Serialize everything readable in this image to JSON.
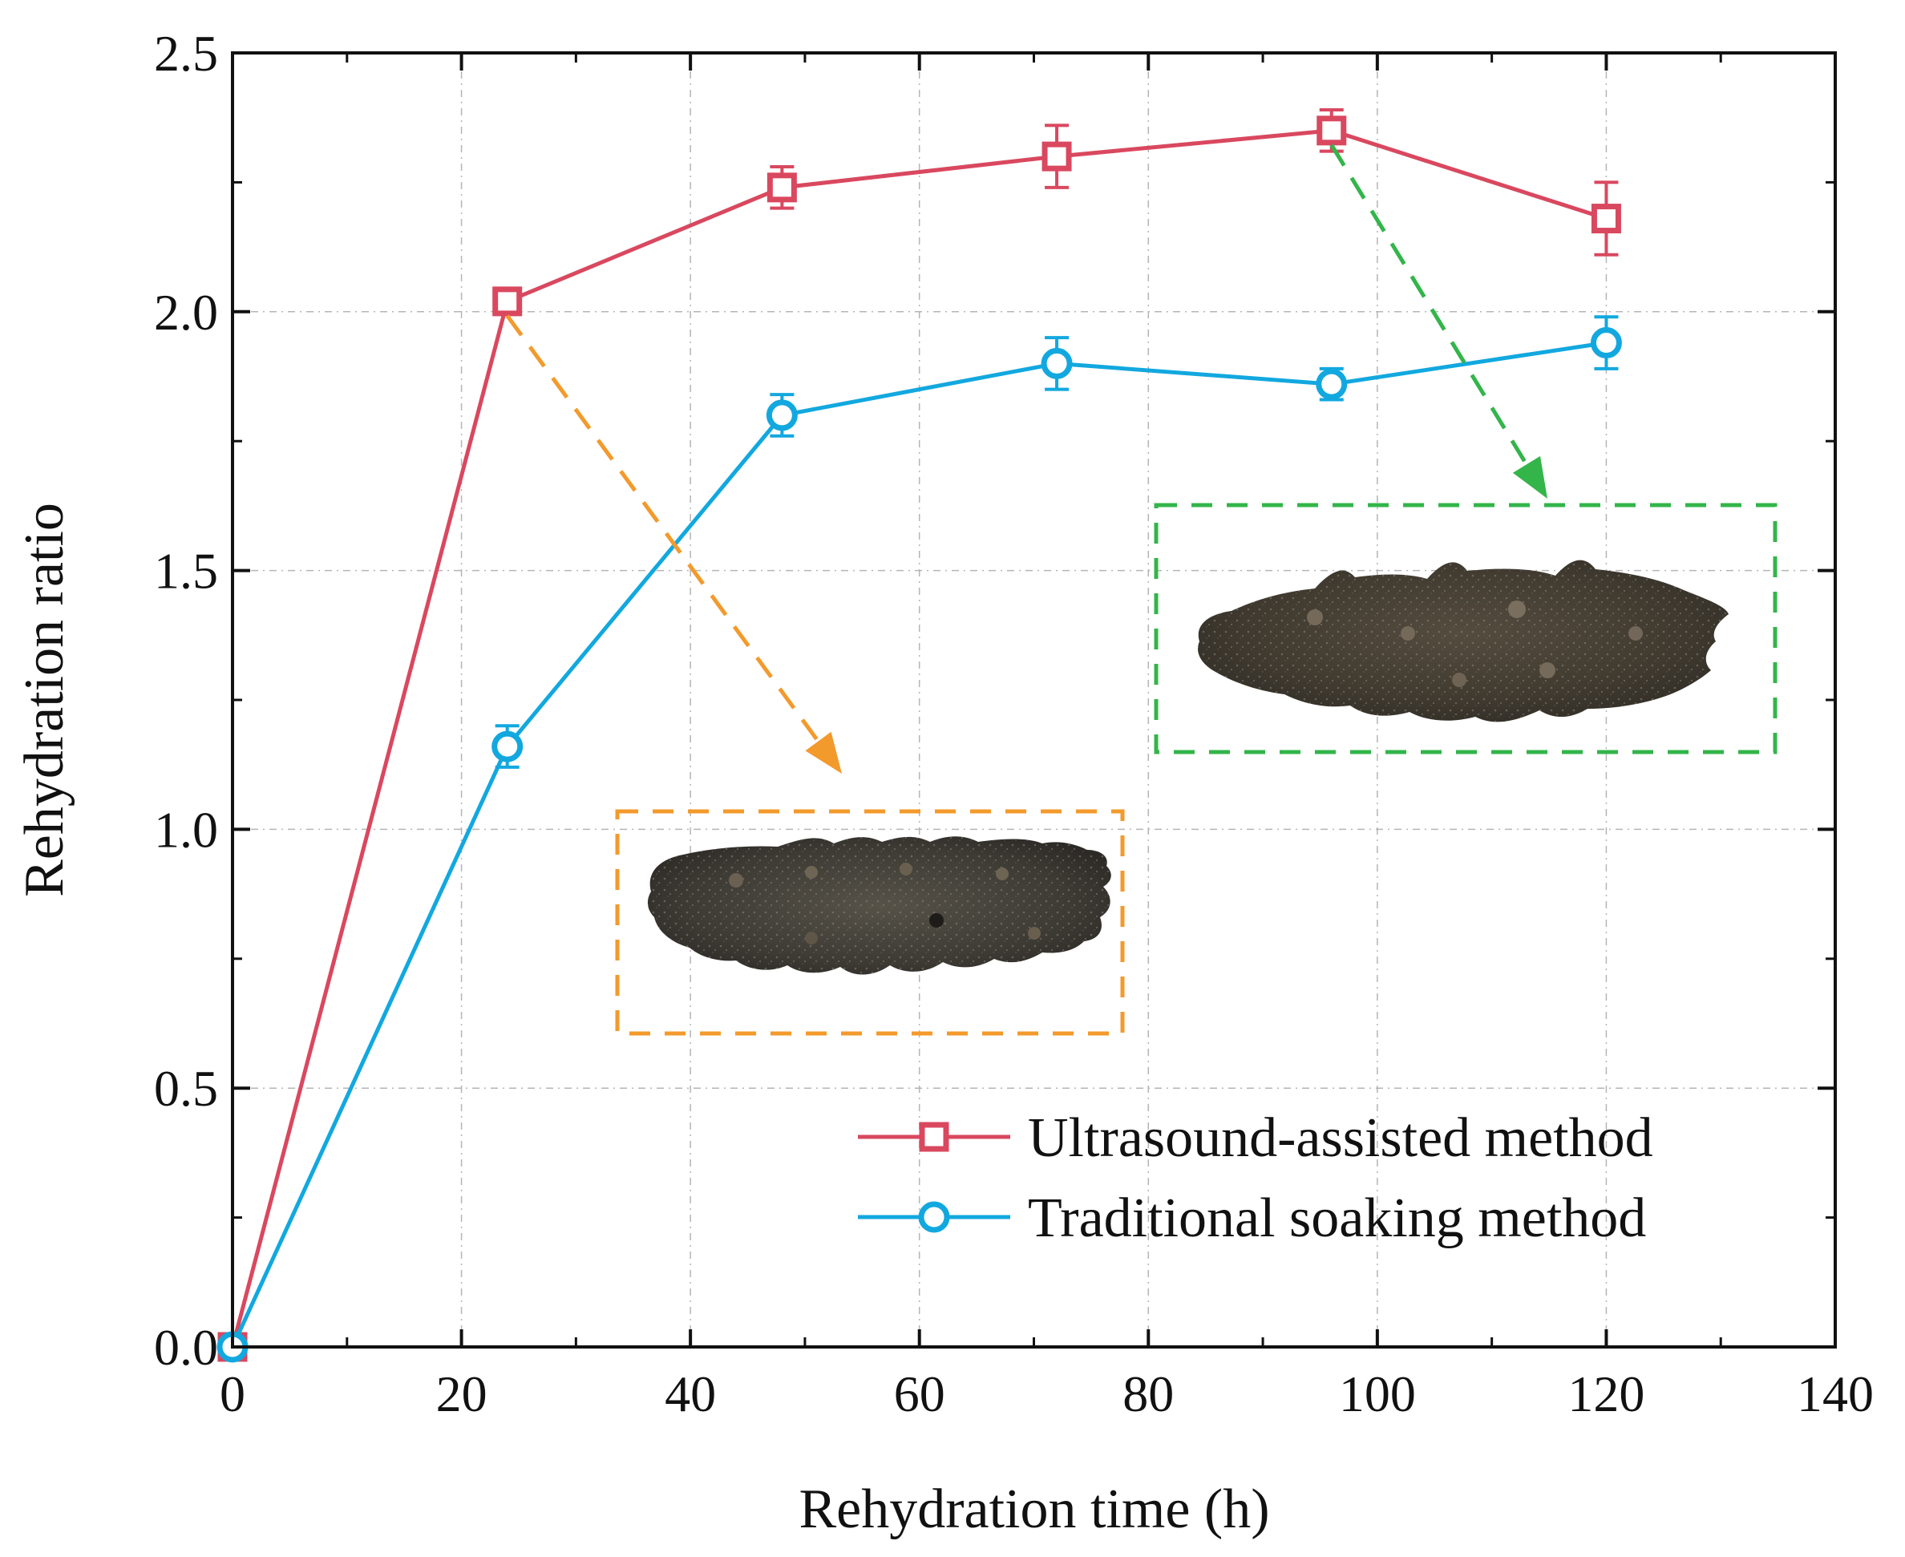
{
  "chart_data": {
    "type": "line",
    "xlabel": "Rehydration time (h)",
    "ylabel": "Rehydration ratio",
    "xlim": [
      0,
      140
    ],
    "ylim": [
      0,
      2.5
    ],
    "xticks": [
      0,
      20,
      40,
      60,
      80,
      100,
      120,
      140
    ],
    "xtick_labels": [
      "0",
      "20",
      "40",
      "60",
      "80",
      "100",
      "120",
      "140"
    ],
    "yticks": [
      0,
      0.5,
      1.0,
      1.5,
      2.0,
      2.5
    ],
    "ytick_labels": [
      "0.0",
      "0.5",
      "1.0",
      "1.5",
      "2.0",
      "2.5"
    ],
    "grid": true,
    "legend_position": "bottom-right",
    "series": [
      {
        "name": "Ultrasound-assisted method",
        "marker": "square",
        "color": "#d9485f",
        "x": [
          0,
          24,
          48,
          72,
          96,
          120
        ],
        "values": [
          0.0,
          2.02,
          2.24,
          2.3,
          2.35,
          2.18
        ],
        "errors": [
          0.0,
          0.02,
          0.04,
          0.06,
          0.04,
          0.07
        ]
      },
      {
        "name": "Traditional soaking method",
        "marker": "circle",
        "color": "#12a8df",
        "x": [
          0,
          24,
          48,
          72,
          96,
          120
        ],
        "values": [
          0.0,
          1.16,
          1.8,
          1.9,
          1.86,
          1.94
        ],
        "errors": [
          0.0,
          0.04,
          0.04,
          0.05,
          0.03,
          0.05
        ]
      }
    ],
    "annotations": [
      {
        "type": "inset-photo",
        "subject": "sea-cucumber",
        "linked_series": "Ultrasound-assisted method",
        "linked_x": 24,
        "frame_color": "#f39a2c"
      },
      {
        "type": "inset-photo",
        "subject": "sea-cucumber",
        "linked_series": "Ultrasound-assisted method",
        "linked_x": 96,
        "frame_color": "#33b54a"
      }
    ]
  }
}
